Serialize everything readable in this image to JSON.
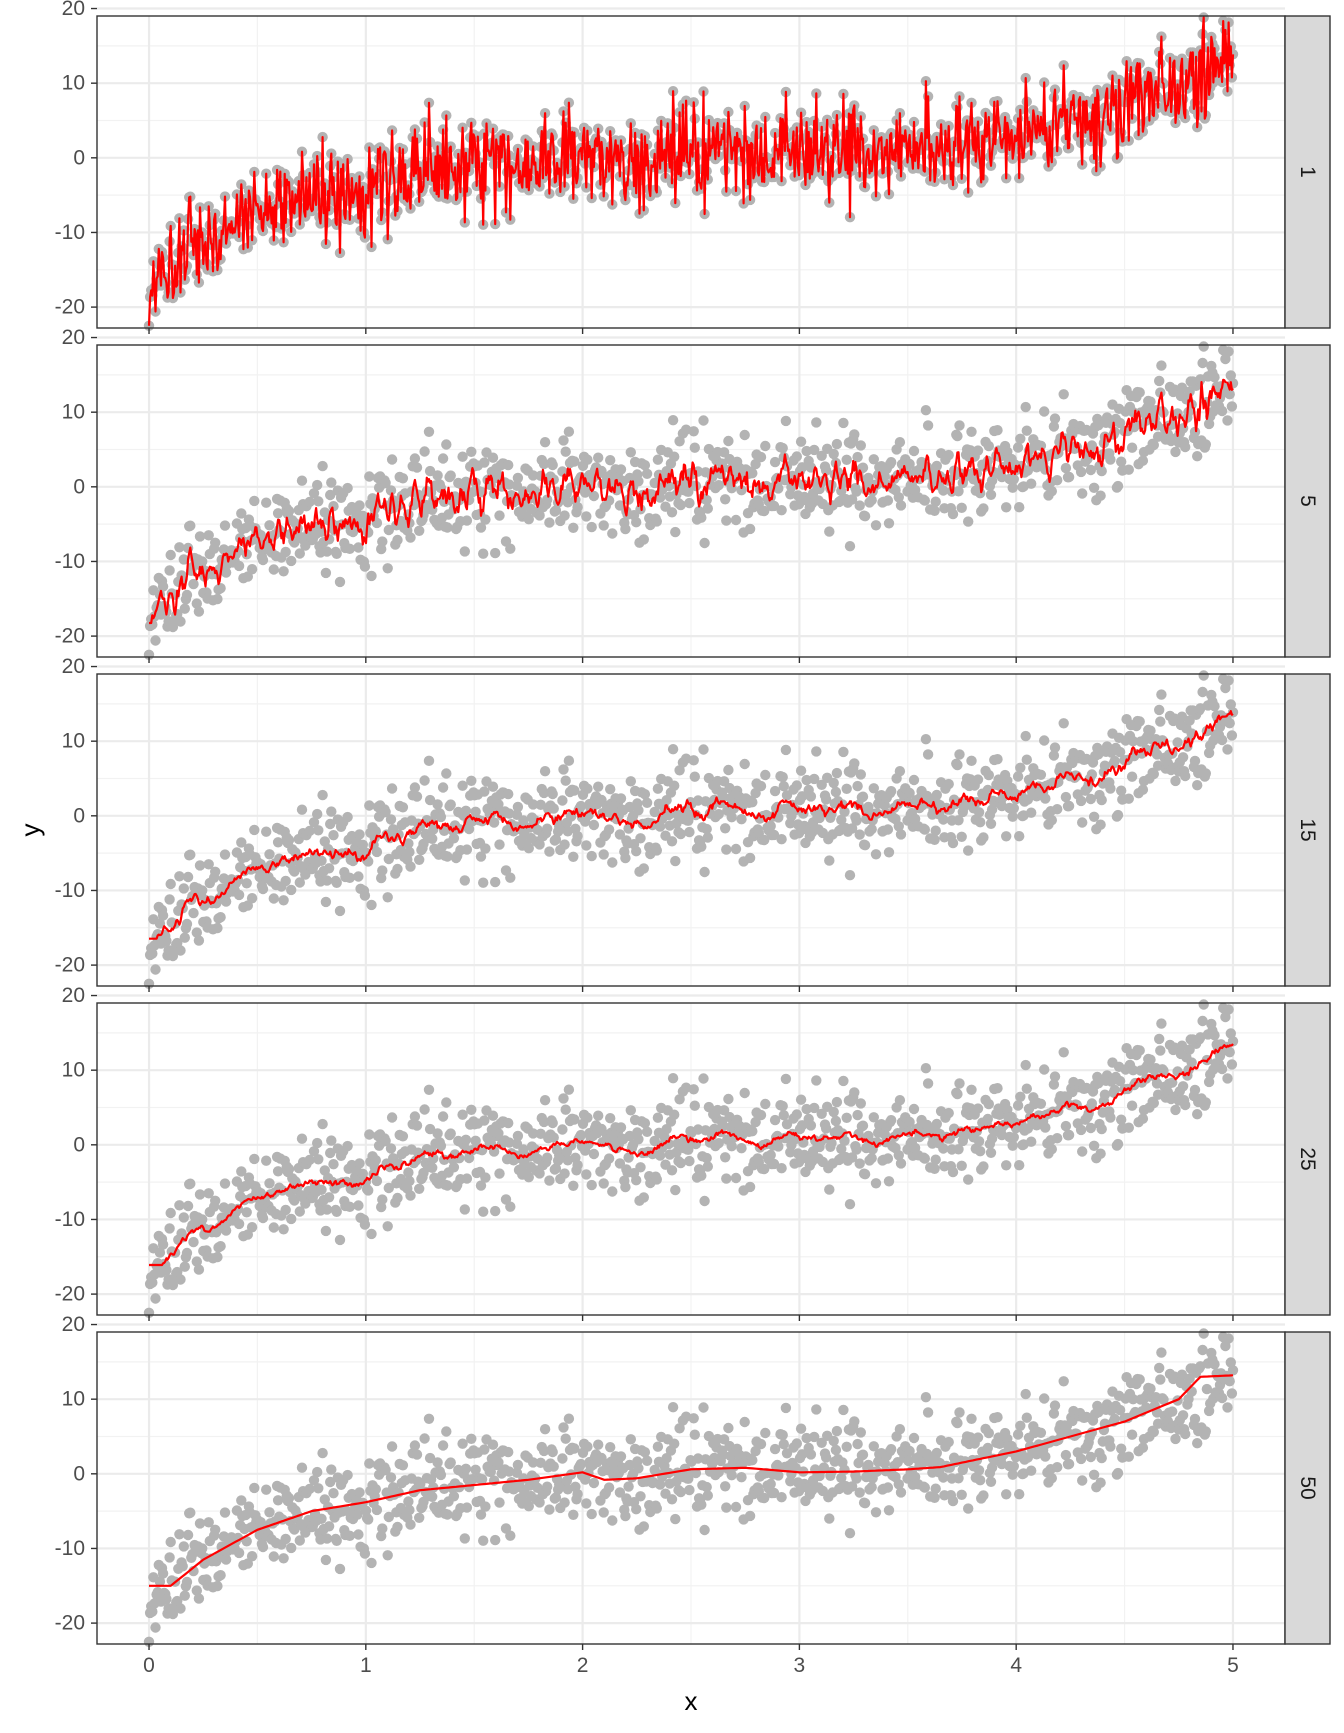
{
  "chart_data": {
    "type": "line",
    "subtype": "faceted scatter with moving-average smoother",
    "title": "",
    "xlabel": "x",
    "ylabel": "y",
    "xlim": [
      0,
      5
    ],
    "ylim": [
      -22.8,
      19
    ],
    "x_ticks": [
      0,
      1,
      2,
      3,
      4,
      5
    ],
    "y_ticks": [
      -20,
      -10,
      0,
      10,
      20
    ],
    "x_tick_labels": [
      "0",
      "1",
      "2",
      "3",
      "4",
      "5"
    ],
    "y_tick_labels": [
      "-20",
      "-10",
      "0",
      "10",
      "20"
    ],
    "grid": true,
    "facet_labels": [
      "1",
      "5",
      "15",
      "25",
      "50"
    ],
    "facet_strip_position": "right",
    "point_color": "#b3b3b3",
    "line_color": "#ff0000",
    "point_count": 1000,
    "trend_x": [
      0,
      0.25,
      0.5,
      0.75,
      1.0,
      1.25,
      1.5,
      1.75,
      2.0,
      2.25,
      2.5,
      2.75,
      3.0,
      3.25,
      3.5,
      3.75,
      4.0,
      4.25,
      4.5,
      4.75,
      5.0
    ],
    "trend_y": [
      -17.5,
      -11.5,
      -7.5,
      -5.0,
      -3.8,
      -2.2,
      -1.2,
      -0.6,
      0.2,
      -0.6,
      0.4,
      0.8,
      0.2,
      0.4,
      0.6,
      1.6,
      3.0,
      5.0,
      7.0,
      10.0,
      13.5
    ],
    "noise_sd": 3.2,
    "smoothed_series": [
      {
        "name": "50",
        "x": [
          0,
          0.1,
          0.25,
          0.5,
          0.75,
          1.0,
          1.25,
          1.5,
          1.75,
          2.0,
          2.1,
          2.25,
          2.5,
          2.75,
          3.0,
          3.25,
          3.5,
          3.65,
          3.75,
          4.0,
          4.25,
          4.5,
          4.75,
          4.85,
          5.0
        ],
        "y": [
          -15.0,
          -15.0,
          -11.5,
          -7.5,
          -5.0,
          -3.8,
          -2.2,
          -1.5,
          -0.8,
          0.2,
          -0.8,
          -0.6,
          0.6,
          0.8,
          0.2,
          0.3,
          0.6,
          0.9,
          1.5,
          3.0,
          5.0,
          7.0,
          10.0,
          13.0,
          13.2
        ]
      }
    ]
  }
}
